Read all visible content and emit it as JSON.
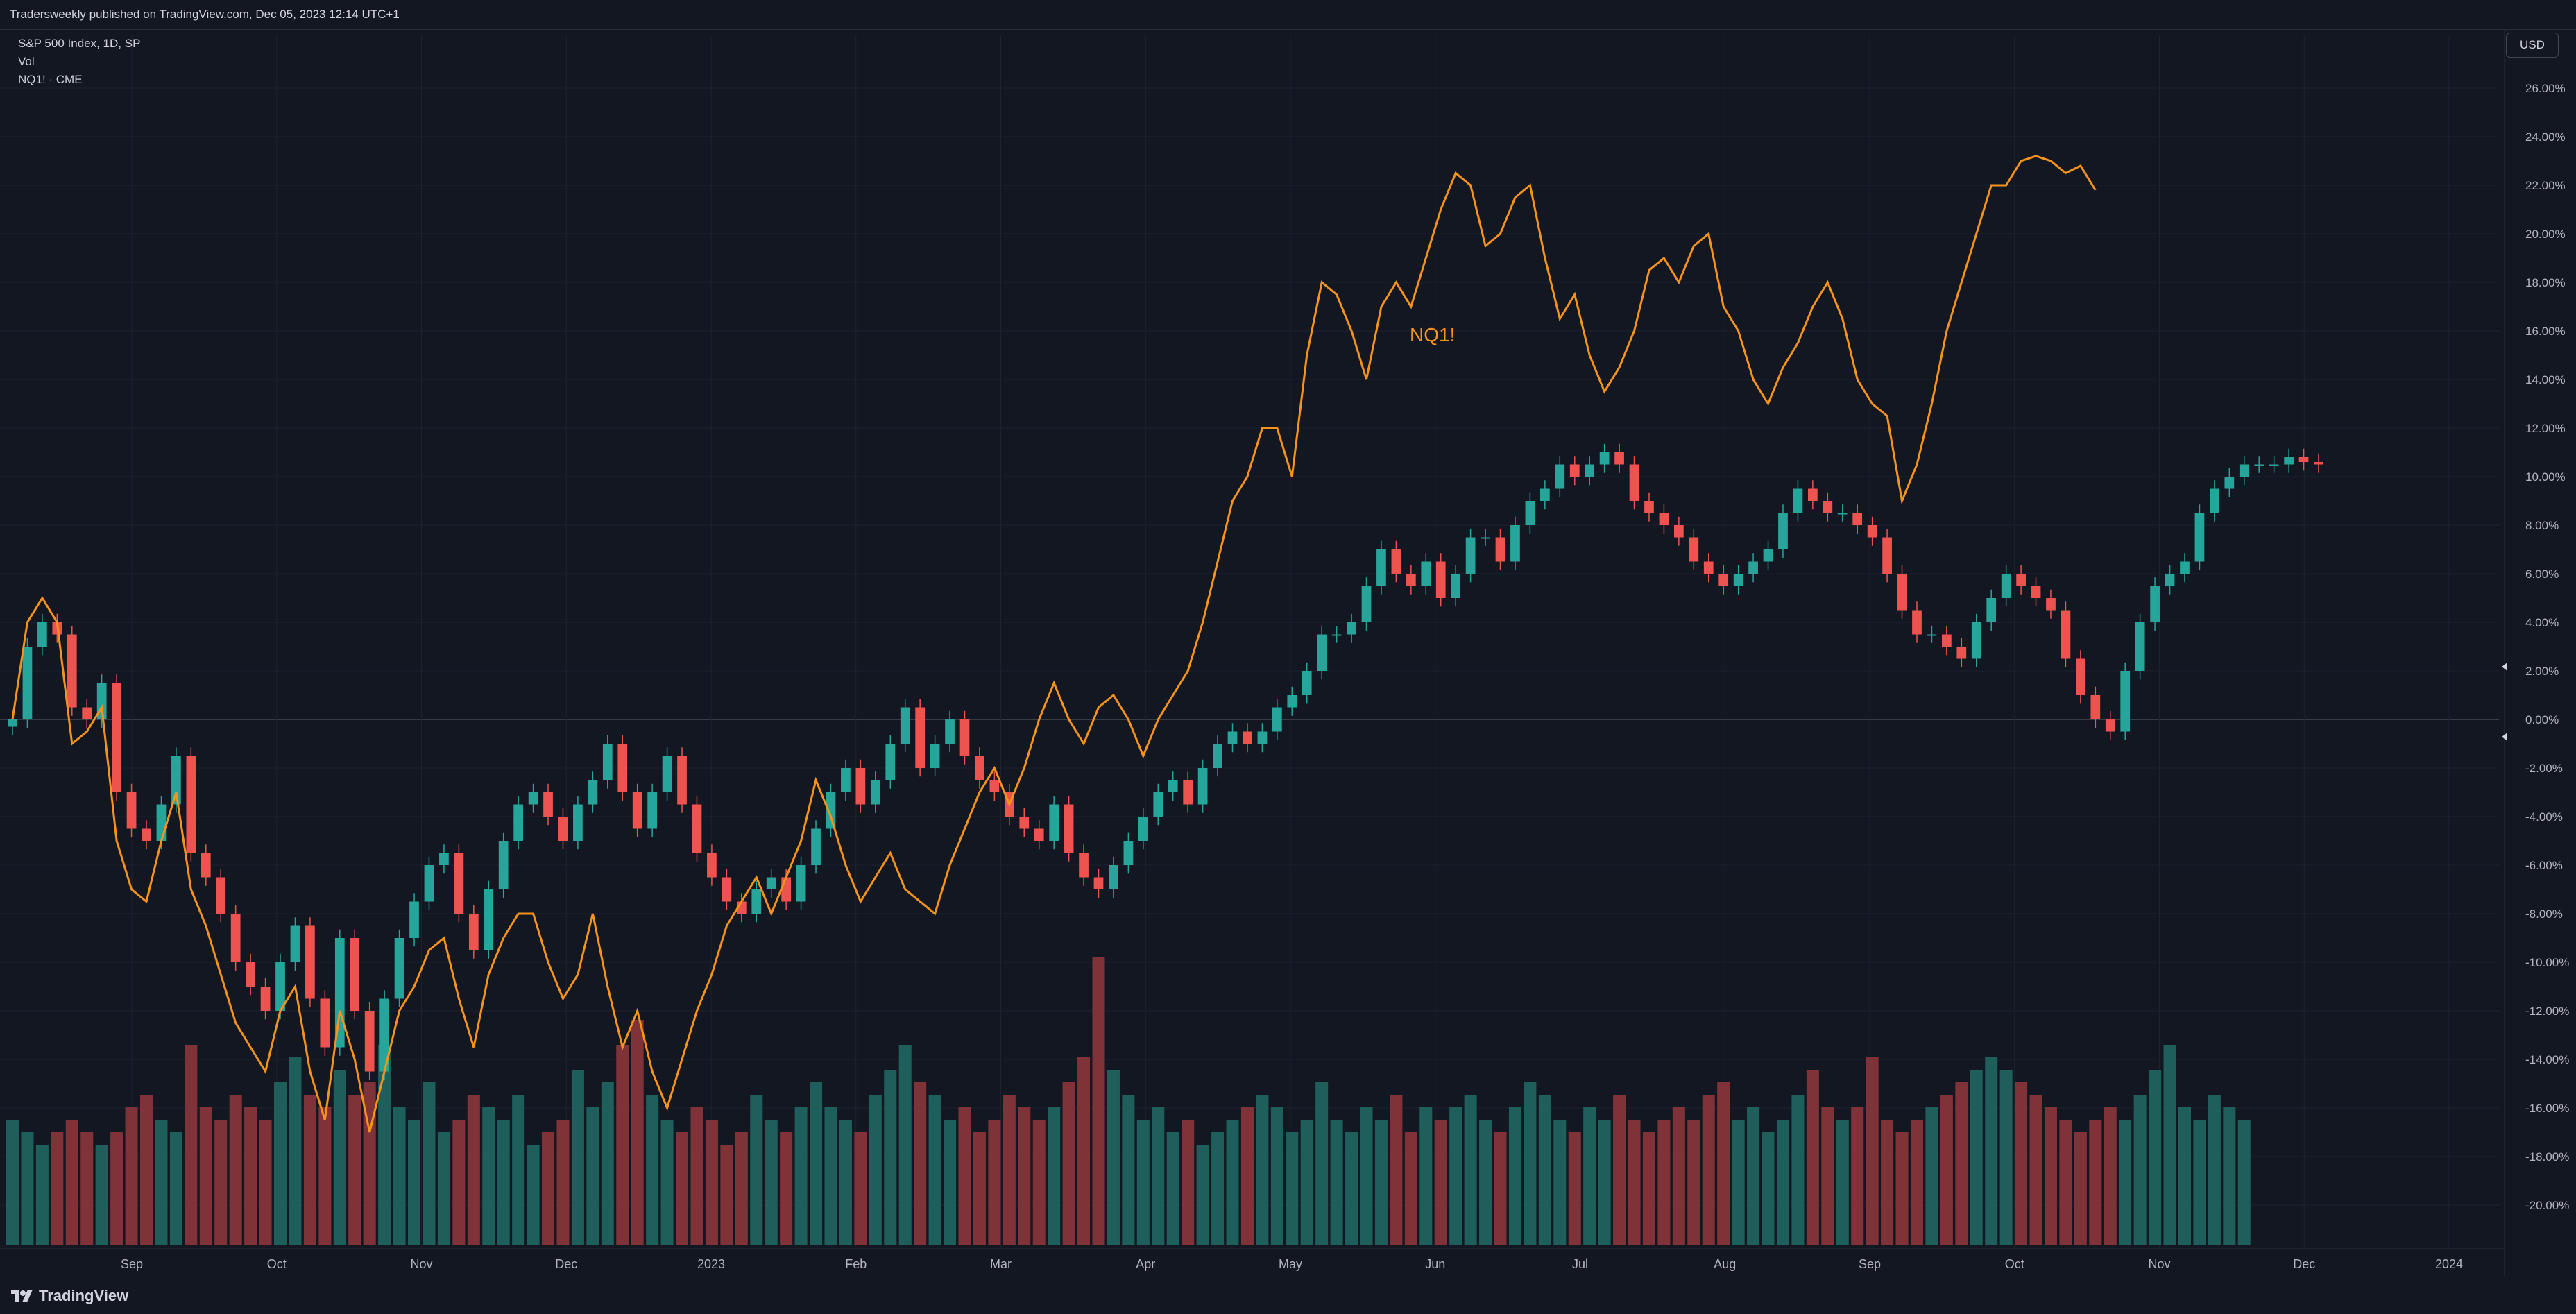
{
  "header": {
    "published": "Tradersweekly published on TradingView.com, Dec 05, 2023 12:14 UTC+1"
  },
  "legend": {
    "symbol": "S&P 500 Index, 1D, SP",
    "volume": "Vol",
    "compare": "NQ1! · CME"
  },
  "currency": "USD",
  "footer": {
    "brand": "TradingView"
  },
  "colors": {
    "background": "#131722",
    "up": "#26a69a",
    "down": "#ef5350",
    "volume_up": "#1f5f5b",
    "volume_down": "#7f3338",
    "nq_line": "#f7931a",
    "grid": "#1e222d",
    "axis_text": "#b2b5be"
  },
  "chart_data": {
    "type": "line",
    "title": "S&P 500 Index, 1D, SP",
    "y_axis_unit": "percent change",
    "ylim": [
      -22,
      27
    ],
    "y_ticks": [
      "26.00%",
      "24.00%",
      "22.00%",
      "20.00%",
      "18.00%",
      "16.00%",
      "14.00%",
      "12.00%",
      "10.00%",
      "8.00%",
      "6.00%",
      "4.00%",
      "2.00%",
      "0.00%",
      "-2.00%",
      "-4.00%",
      "-6.00%",
      "-8.00%",
      "-10.00%",
      "-12.00%",
      "-14.00%",
      "-16.00%",
      "-18.00%",
      "-20.00%"
    ],
    "x_ticks": [
      "Sep",
      "Oct",
      "Nov",
      "Dec",
      "2023",
      "Feb",
      "Mar",
      "Apr",
      "May",
      "Jun",
      "Jul",
      "Aug",
      "Sep",
      "Oct",
      "Nov",
      "Dec",
      "2024"
    ],
    "annotation": "NQ1!",
    "series": [
      {
        "name": "S&P 500 Index",
        "style": "candles",
        "values": [
          0.0,
          3.0,
          4.0,
          3.5,
          0.5,
          0.0,
          1.5,
          -3.0,
          -4.5,
          -5.0,
          -3.5,
          -1.5,
          -5.5,
          -6.5,
          -8.0,
          -10.0,
          -11.0,
          -12.0,
          -10.0,
          -8.5,
          -11.5,
          -13.5,
          -9.0,
          -12.0,
          -14.5,
          -11.5,
          -9.0,
          -7.5,
          -6.0,
          -5.5,
          -8.0,
          -9.5,
          -7.0,
          -5.0,
          -3.5,
          -3.0,
          -4.0,
          -5.0,
          -3.5,
          -2.5,
          -1.0,
          -3.0,
          -4.5,
          -3.0,
          -1.5,
          -3.5,
          -5.5,
          -6.5,
          -7.5,
          -8.0,
          -7.0,
          -6.5,
          -7.5,
          -6.0,
          -4.5,
          -3.0,
          -2.0,
          -3.5,
          -2.5,
          -1.0,
          0.5,
          -2.0,
          -1.0,
          0.0,
          -1.5,
          -2.5,
          -3.0,
          -4.0,
          -4.5,
          -5.0,
          -3.5,
          -5.5,
          -6.5,
          -7.0,
          -6.0,
          -5.0,
          -4.0,
          -3.0,
          -2.5,
          -3.5,
          -2.0,
          -1.0,
          -0.5,
          -1.0,
          -0.5,
          0.5,
          1.0,
          2.0,
          3.5,
          3.5,
          4.0,
          5.5,
          7.0,
          6.0,
          5.5,
          6.5,
          5.0,
          6.0,
          7.5,
          7.5,
          6.5,
          8.0,
          9.0,
          9.5,
          10.5,
          10.0,
          10.5,
          11.0,
          10.5,
          9.0,
          8.5,
          8.0,
          7.5,
          6.5,
          6.0,
          5.5,
          6.0,
          6.5,
          7.0,
          8.5,
          9.5,
          9.0,
          8.5,
          8.5,
          8.0,
          7.5,
          6.0,
          4.5,
          3.5,
          3.5,
          3.0,
          2.5,
          4.0,
          5.0,
          6.0,
          5.5,
          5.0,
          4.5,
          2.5,
          1.0,
          0.0,
          -0.5,
          2.0,
          4.0,
          5.5,
          6.0,
          6.5,
          8.5,
          9.5,
          10.0,
          10.5,
          10.5,
          10.5,
          10.8,
          10.6,
          10.5
        ]
      },
      {
        "name": "NQ1!",
        "style": "line",
        "values": [
          0.0,
          4.0,
          5.0,
          4.0,
          -1.0,
          -0.5,
          0.5,
          -5.0,
          -7.0,
          -7.5,
          -5.0,
          -3.0,
          -7.0,
          -8.5,
          -10.5,
          -12.5,
          -13.5,
          -14.5,
          -12.0,
          -11.0,
          -14.5,
          -16.5,
          -12.0,
          -14.0,
          -17.0,
          -14.5,
          -12.0,
          -11.0,
          -9.5,
          -9.0,
          -11.5,
          -13.5,
          -10.5,
          -9.0,
          -8.0,
          -8.0,
          -10.0,
          -11.5,
          -10.5,
          -8.0,
          -11.0,
          -13.5,
          -12.0,
          -14.5,
          -16.0,
          -14.0,
          -12.0,
          -10.5,
          -8.5,
          -7.5,
          -6.5,
          -8.0,
          -6.5,
          -5.0,
          -2.5,
          -4.0,
          -6.0,
          -7.5,
          -6.5,
          -5.5,
          -7.0,
          -7.5,
          -8.0,
          -6.0,
          -4.5,
          -3.0,
          -2.0,
          -3.5,
          -2.0,
          0.0,
          1.5,
          0.0,
          -1.0,
          0.5,
          1.0,
          0.0,
          -1.5,
          0.0,
          1.0,
          2.0,
          4.0,
          6.5,
          9.0,
          10.0,
          12.0,
          12.0,
          10.0,
          15.0,
          18.0,
          17.5,
          16.0,
          14.0,
          17.0,
          18.0,
          17.0,
          19.0,
          21.0,
          22.5,
          22.0,
          19.5,
          20.0,
          21.5,
          22.0,
          19.0,
          16.5,
          17.5,
          15.0,
          13.5,
          14.5,
          16.0,
          18.5,
          19.0,
          18.0,
          19.5,
          20.0,
          17.0,
          16.0,
          14.0,
          13.0,
          14.5,
          15.5,
          17.0,
          18.0,
          16.5,
          14.0,
          13.0,
          12.5,
          9.0,
          10.5,
          13.0,
          16.0,
          18.0,
          20.0,
          22.0,
          22.0,
          23.0,
          23.2,
          23.0,
          22.5,
          22.8,
          21.8
        ]
      },
      {
        "name": "Vol",
        "style": "volume",
        "values": [
          1.0,
          0.9,
          0.8,
          0.9,
          1.0,
          0.9,
          0.8,
          0.9,
          1.1,
          1.2,
          1.0,
          0.9,
          1.6,
          1.1,
          1.0,
          1.2,
          1.1,
          1.0,
          1.3,
          1.5,
          1.2,
          1.1,
          1.4,
          1.2,
          1.3,
          1.6,
          1.1,
          1.0,
          1.3,
          0.9,
          1.0,
          1.2,
          1.1,
          1.0,
          1.2,
          0.8,
          0.9,
          1.0,
          1.4,
          1.1,
          1.3,
          1.6,
          1.8,
          1.2,
          1.0,
          0.9,
          1.1,
          1.0,
          0.8,
          0.9,
          1.2,
          1.0,
          0.9,
          1.1,
          1.3,
          1.1,
          1.0,
          0.9,
          1.2,
          1.4,
          1.6,
          1.3,
          1.2,
          1.0,
          1.1,
          0.9,
          1.0,
          1.2,
          1.1,
          1.0,
          1.1,
          1.3,
          1.5,
          2.3,
          1.4,
          1.2,
          1.0,
          1.1,
          0.9,
          1.0,
          0.8,
          0.9,
          1.0,
          1.1,
          1.2,
          1.1,
          0.9,
          1.0,
          1.3,
          1.0,
          0.9,
          1.1,
          1.0,
          1.2,
          0.9,
          1.1,
          1.0,
          1.1,
          1.2,
          1.0,
          0.9,
          1.1,
          1.3,
          1.2,
          1.0,
          0.9,
          1.1,
          1.0,
          1.2,
          1.0,
          0.9,
          1.0,
          1.1,
          1.0,
          1.2,
          1.3,
          1.0,
          1.1,
          0.9,
          1.0,
          1.2,
          1.4,
          1.1,
          1.0,
          1.1,
          1.5,
          1.0,
          0.9,
          1.0,
          1.1,
          1.2,
          1.3,
          1.4,
          1.5,
          1.4,
          1.3,
          1.2,
          1.1,
          1.0,
          0.9,
          1.0,
          1.1,
          1.0,
          1.2,
          1.4,
          1.6,
          1.1,
          1.0,
          1.2,
          1.1,
          1.0
        ]
      }
    ]
  }
}
